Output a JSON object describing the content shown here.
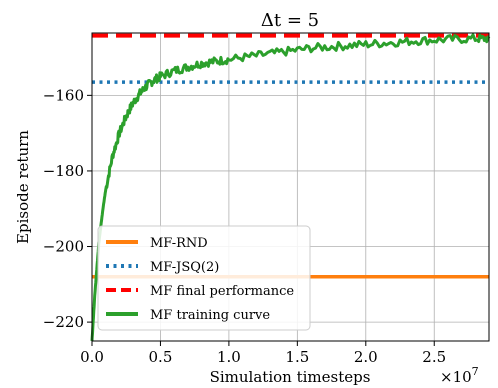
{
  "chart_data": {
    "type": "line",
    "title": "Δt = 5",
    "xlabel": "Simulation timesteps",
    "ylabel": "Episode return",
    "x_scale_label": "×10^7",
    "x_scale_base": "×10",
    "x_scale_exp": "7",
    "xlim": [
      0,
      2.9
    ],
    "ylim": [
      -225,
      -143.5
    ],
    "xticks": [
      0.0,
      0.5,
      1.0,
      1.5,
      2.0,
      2.5
    ],
    "xtick_labels": [
      "0.0",
      "0.5",
      "1.0",
      "1.5",
      "2.0",
      "2.5"
    ],
    "yticks": [
      -220,
      -200,
      -180,
      -160
    ],
    "ytick_labels": [
      "−220",
      "−200",
      "−180",
      "−160"
    ],
    "grid": true,
    "legend_position": "lower-left",
    "series": [
      {
        "name": "MF-RND",
        "style": "solid",
        "color": "#ff7f0e",
        "y_const": -208
      },
      {
        "name": "MF-JSQ(2)",
        "style": "dotted",
        "color": "#1f77b4",
        "y_const": -156.5
      },
      {
        "name": "MF final performance",
        "style": "dashed",
        "color": "#ff0000",
        "y_const": -144.2
      },
      {
        "name": "MF training curve",
        "style": "solid",
        "color": "#2ca02c",
        "x": [
          0.0,
          0.02,
          0.05,
          0.08,
          0.1,
          0.15,
          0.2,
          0.25,
          0.3,
          0.35,
          0.4,
          0.45,
          0.5,
          0.6,
          0.7,
          0.8,
          0.9,
          1.0,
          1.2,
          1.4,
          1.6,
          1.8,
          2.0,
          2.2,
          2.4,
          2.6,
          2.8,
          2.9
        ],
        "y": [
          -225,
          -213,
          -199,
          -190,
          -185,
          -176,
          -170,
          -165.5,
          -162,
          -159.5,
          -157.5,
          -156,
          -155,
          -153.5,
          -152.5,
          -151.5,
          -151,
          -150.5,
          -149.5,
          -148.5,
          -147.5,
          -147,
          -146.5,
          -146,
          -145.5,
          -145.2,
          -145,
          -145
        ]
      }
    ]
  }
}
